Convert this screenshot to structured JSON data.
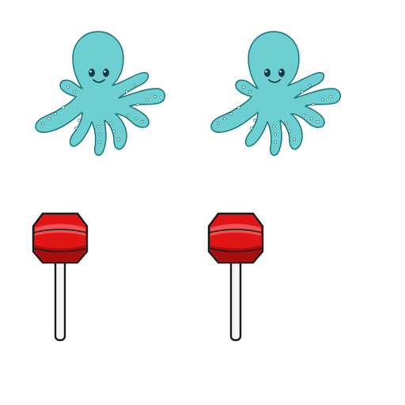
{
  "scene": {
    "background": "#ffffff",
    "rows": [
      {
        "object": "octopus-icon",
        "count": 2,
        "colors": {
          "body": "#6ECFD2",
          "outline": "#0F6F73",
          "eye": "#123B4A",
          "cheek": "#3DB5B8"
        }
      },
      {
        "object": "lollipop-icon",
        "count": 2,
        "colors": {
          "candy": "#E01515",
          "candy_dark": "#A80F0F",
          "candy_light": "#F05252",
          "stick": "#F4F4F4",
          "outline": "#1A1A1A"
        }
      }
    ]
  }
}
